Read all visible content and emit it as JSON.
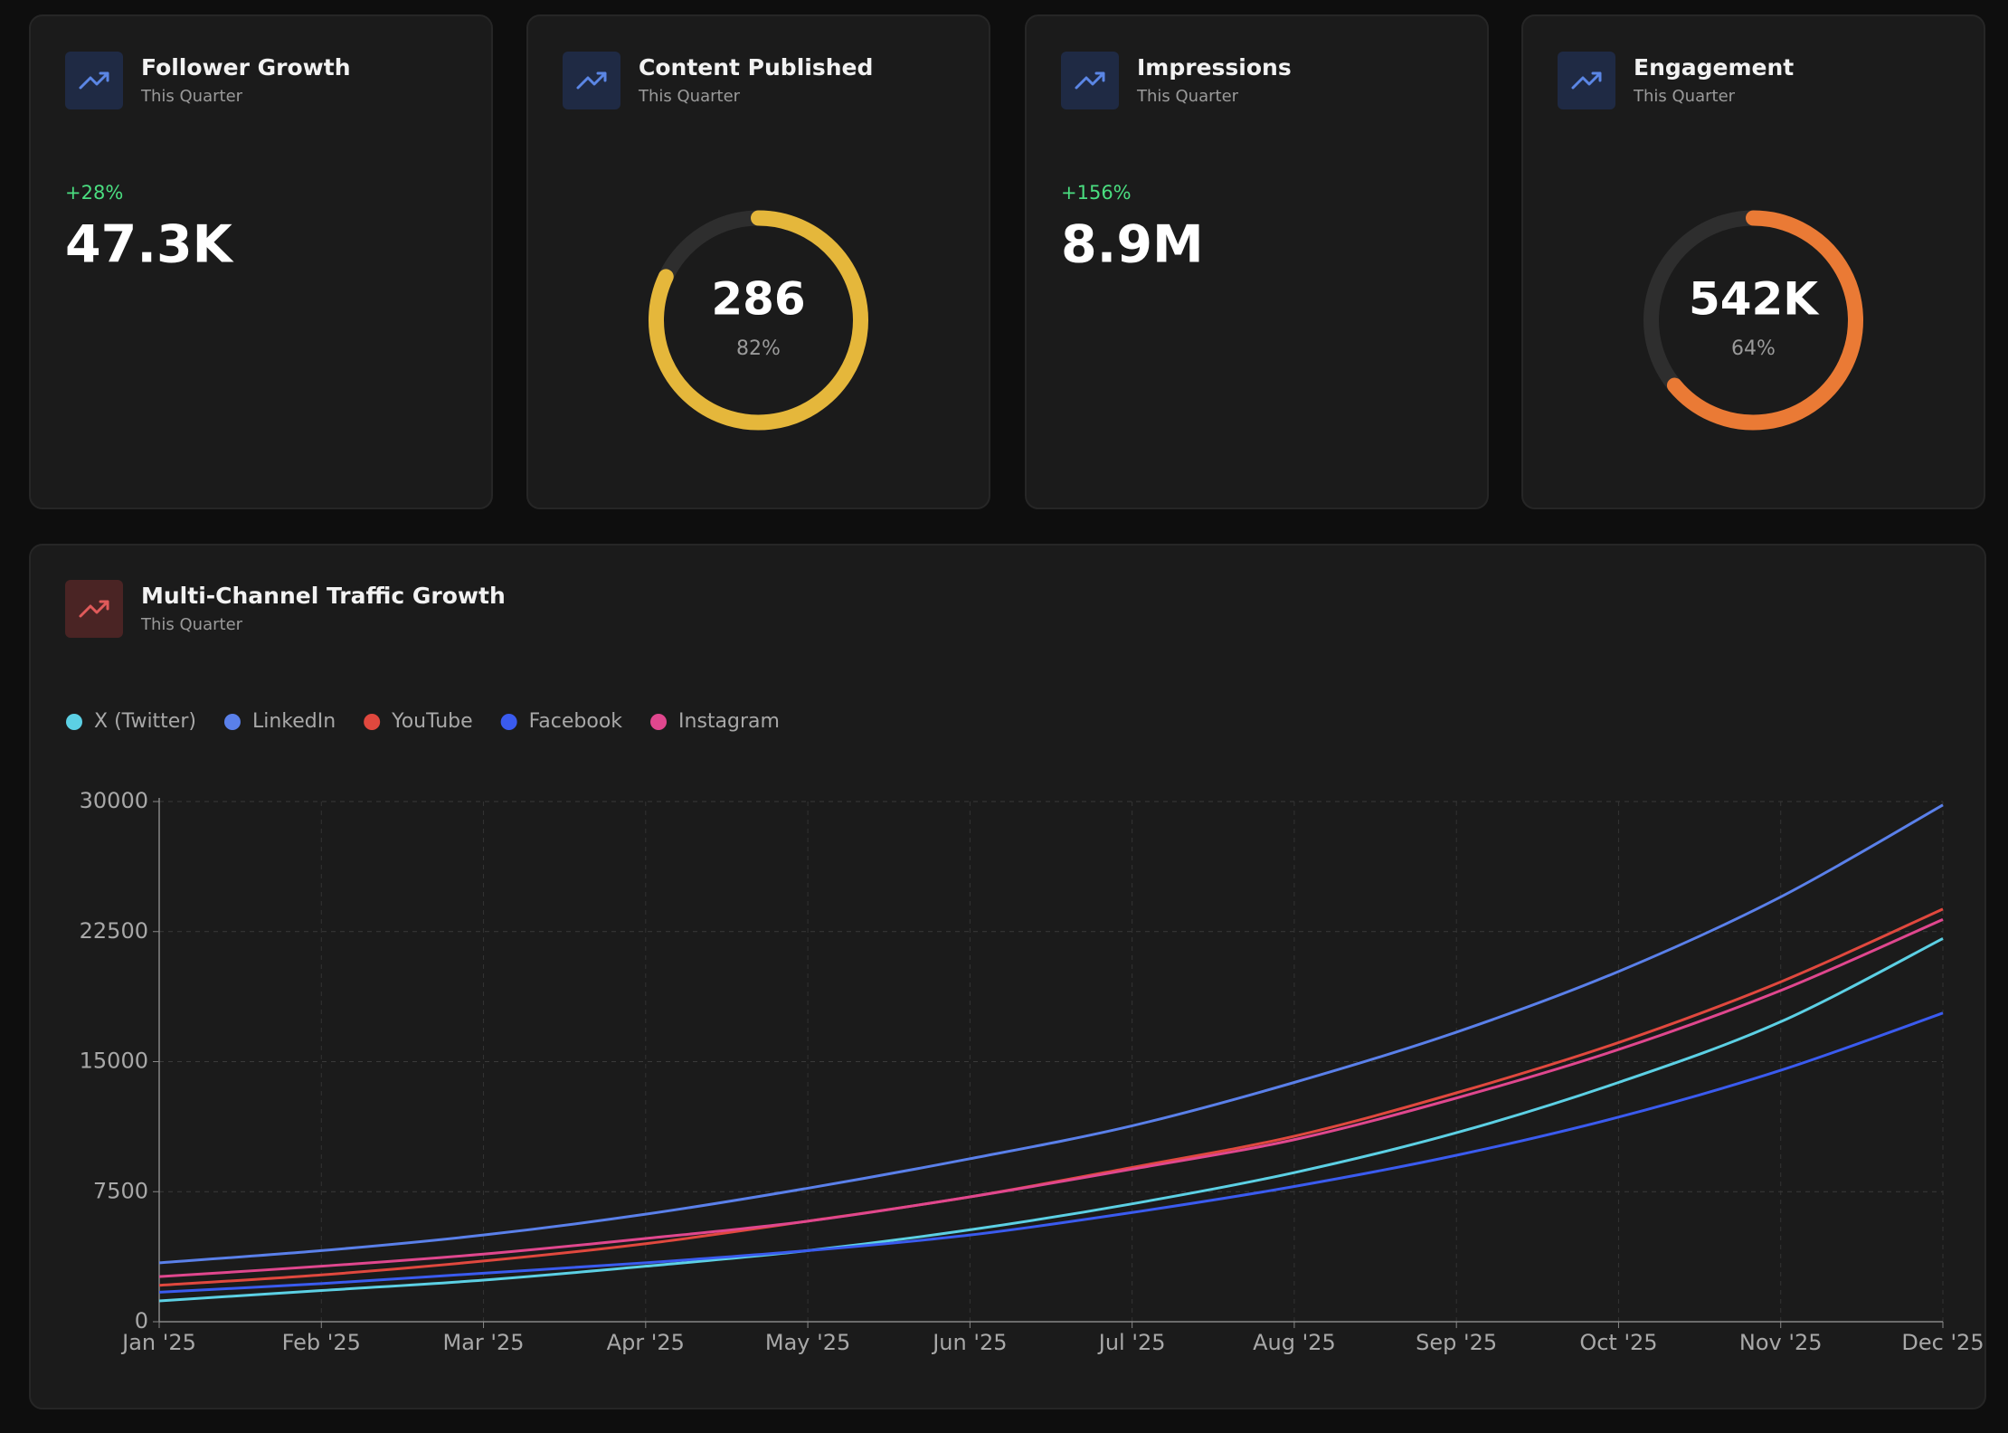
{
  "cards": [
    {
      "title": "Follower Growth",
      "subtitle": "This Quarter",
      "change": "+28%",
      "value": "47.3K"
    },
    {
      "title": "Content Published",
      "subtitle": "This Quarter",
      "value": "286",
      "ring": {
        "value": 82,
        "label": "82%"
      },
      "ring_color": "#e5b73b"
    },
    {
      "title": "Impressions",
      "subtitle": "This Quarter",
      "change": "+156%",
      "value": "8.9M"
    },
    {
      "title": "Engagement",
      "subtitle": "This Quarter",
      "value": "542K",
      "ring": {
        "value": 64,
        "label": "64%"
      },
      "ring_color": "#ea7a35"
    }
  ],
  "chart_data": {
    "type": "line",
    "title": "Multi-Channel Traffic Growth",
    "subtitle": "This Quarter",
    "categories": [
      "Jan '25",
      "Feb '25",
      "Mar '25",
      "Apr '25",
      "May '25",
      "Jun '25",
      "Jul '25",
      "Aug '25",
      "Sep '25",
      "Oct '25",
      "Nov '25",
      "Dec '25"
    ],
    "series": [
      {
        "name": "X (Twitter)",
        "color": "#5cd0e4",
        "values": [
          1200,
          1800,
          2400,
          3200,
          4100,
          5300,
          6800,
          8600,
          10900,
          13800,
          17300,
          22100
        ]
      },
      {
        "name": "LinkedIn",
        "color": "#5a80ea",
        "values": [
          3400,
          4100,
          5000,
          6200,
          7700,
          9400,
          11300,
          13800,
          16700,
          20200,
          24500,
          29800
        ]
      },
      {
        "name": "YouTube",
        "color": "#e0483e",
        "values": [
          2100,
          2700,
          3500,
          4500,
          5800,
          7200,
          8900,
          10700,
          13200,
          16100,
          19600,
          23800
        ]
      },
      {
        "name": "Facebook",
        "color": "#3a5bef",
        "values": [
          1700,
          2200,
          2800,
          3400,
          4100,
          5000,
          6300,
          7800,
          9600,
          11800,
          14500,
          17800
        ]
      },
      {
        "name": "Instagram",
        "color": "#e0478e",
        "values": [
          2600,
          3200,
          3900,
          4800,
          5800,
          7200,
          8800,
          10500,
          12900,
          15700,
          19100,
          23200
        ]
      }
    ],
    "ylim": [
      0,
      30000
    ],
    "yticks": [
      0,
      7500,
      15000,
      22500,
      30000
    ],
    "grid": true
  }
}
